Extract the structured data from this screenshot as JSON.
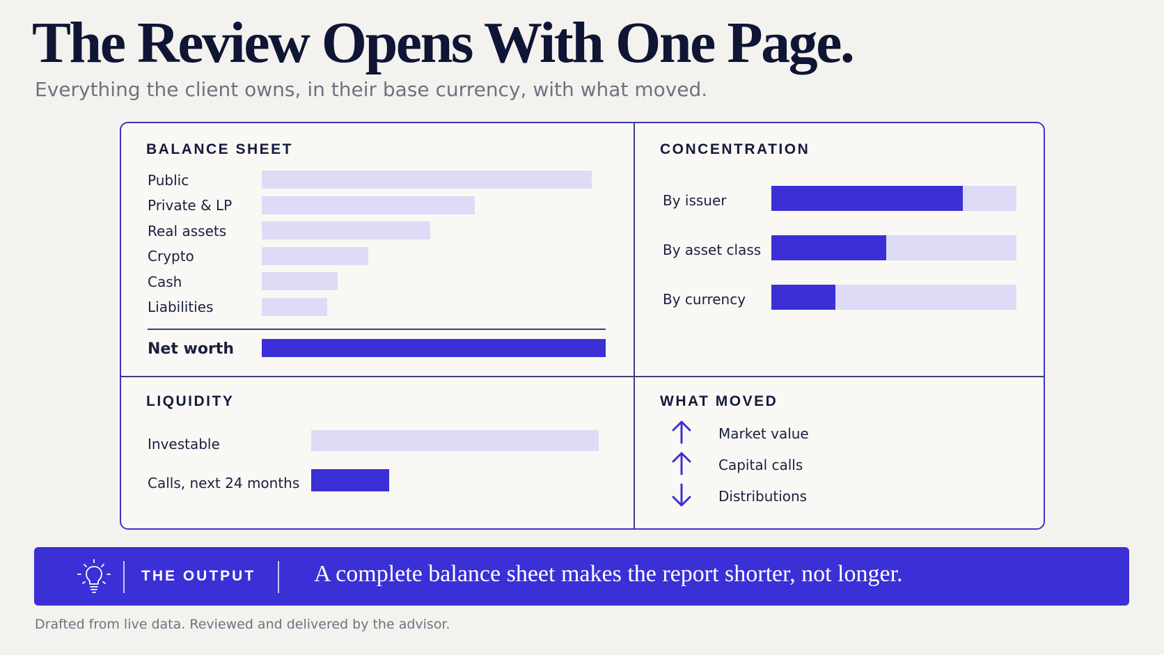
{
  "title": "The Review Opens With One Page.",
  "subtitle": "Everything the client owns, in their base currency, with what moved.",
  "balance_sheet": {
    "heading": "BALANCE SHEET",
    "rows": [
      {
        "label": "Public",
        "level": 0.96
      },
      {
        "label": "Private & LP",
        "level": 0.62
      },
      {
        "label": "Real assets",
        "level": 0.49
      },
      {
        "label": "Crypto",
        "level": 0.31
      },
      {
        "label": "Cash",
        "level": 0.22
      },
      {
        "label": "Liabilities",
        "level": 0.19
      }
    ],
    "total": {
      "label": "Net worth",
      "level": 1.0
    }
  },
  "concentration": {
    "heading": "CONCENTRATION",
    "rows": [
      {
        "label": "By issuer",
        "level": 0.78
      },
      {
        "label": "By asset class",
        "level": 0.47
      },
      {
        "label": "By currency",
        "level": 0.26
      }
    ]
  },
  "liquidity": {
    "heading": "LIQUIDITY",
    "rows": [
      {
        "label": "Investable",
        "level": 1.0,
        "style": "light"
      },
      {
        "label": "Calls, next 24 months",
        "level": 0.27,
        "style": "solid"
      }
    ]
  },
  "what_moved": {
    "heading": "WHAT MOVED",
    "items": [
      {
        "label": "Market value",
        "direction": "up"
      },
      {
        "label": "Capital calls",
        "direction": "up"
      },
      {
        "label": "Distributions",
        "direction": "down"
      }
    ]
  },
  "banner": {
    "icon": "lightbulb-icon",
    "tag": "THE OUTPUT",
    "message": "A complete balance sheet makes the report shorter, not longer."
  },
  "footer": "Drafted from live data. Reviewed and delivered by the advisor.",
  "colors": {
    "accent": "#3b2fd6",
    "light_bar": "#dedbf6",
    "ink": "#0f1535",
    "background": "#f4f2ee"
  }
}
